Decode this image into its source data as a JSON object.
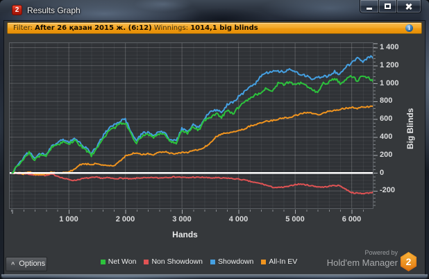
{
  "window": {
    "title": "Results Graph",
    "icon_text": "2"
  },
  "filter": {
    "label": "Filter:",
    "value": "After 26 қазан 2015 ж. (6:12)",
    "winnings_label": "Winnings:",
    "winnings_value": "1014,1 big blinds"
  },
  "bottom": {
    "options_label": "Options",
    "powered_by": "Powered by",
    "brand": "Hold'em Manager",
    "logo_text": "2"
  },
  "chart_data": {
    "type": "line",
    "x_label": "Hands",
    "y_label": "Big Blinds",
    "x_start": 0,
    "x_step": 100,
    "xlim": [
      -43,
      6374
    ],
    "ylim": [
      -395,
      1450
    ],
    "x_ticks": [
      1000,
      2000,
      3000,
      4000,
      5000,
      6000
    ],
    "y_ticks": [
      -200,
      0,
      200,
      400,
      600,
      800,
      1000,
      1200,
      1400
    ],
    "zero_line_color": "#ffffff",
    "series": [
      {
        "name": "Non Showdown",
        "color": "#e05354",
        "noise": 6,
        "z": 1,
        "values": [
          0,
          -10,
          -5,
          -15,
          -25,
          -20,
          -30,
          -15,
          -35,
          -60,
          -75,
          -85,
          -70,
          -60,
          -55,
          -50,
          -60,
          -55,
          -65,
          -60,
          -62,
          -70,
          -60,
          -55,
          -58,
          -52,
          -58,
          -50,
          -48,
          -45,
          -50,
          -55,
          -48,
          -52,
          -50,
          -58,
          -55,
          -60,
          -58,
          -65,
          -70,
          -80,
          -95,
          -110,
          -120,
          -140,
          -160,
          -165,
          -160,
          -150,
          -130,
          -125,
          -135,
          -145,
          -155,
          -160,
          -150,
          -140,
          -145,
          -185,
          -220,
          -228,
          -230,
          -225,
          -212
        ]
      },
      {
        "name": "All-In EV",
        "color": "#f0941f",
        "noise": 8,
        "z": 1,
        "values": [
          0,
          5,
          -10,
          10,
          -15,
          -20,
          -10,
          5,
          -5,
          0,
          10,
          40,
          90,
          100,
          95,
          105,
          90,
          75,
          80,
          130,
          185,
          210,
          225,
          205,
          215,
          205,
          230,
          240,
          215,
          215,
          225,
          230,
          250,
          255,
          290,
          330,
          400,
          430,
          450,
          455,
          470,
          490,
          520,
          535,
          560,
          575,
          585,
          600,
          615,
          620,
          640,
          660,
          675,
          665,
          650,
          665,
          690,
          700,
          710,
          720,
          730,
          720,
          740,
          735,
          750
        ]
      },
      {
        "name": "Showdown",
        "color": "#45a0e2",
        "noise": 15,
        "z": 2,
        "values": [
          0,
          90,
          165,
          240,
          165,
          220,
          200,
          310,
          330,
          370,
          340,
          390,
          330,
          280,
          215,
          295,
          405,
          490,
          530,
          580,
          600,
          460,
          360,
          445,
          455,
          420,
          455,
          450,
          365,
          355,
          490,
          465,
          540,
          505,
          610,
          680,
          700,
          680,
          760,
          790,
          850,
          900,
          950,
          1000,
          1080,
          1120,
          1130,
          1140,
          1120,
          1150,
          1120,
          1100,
          1080,
          1050,
          1060,
          1070,
          1090,
          1130,
          1100,
          1180,
          1230,
          1280,
          1240,
          1300,
          1285
        ]
      },
      {
        "name": "Net Won",
        "color": "#2cc23c",
        "noise": 15,
        "z": 2,
        "values": [
          0,
          80,
          150,
          225,
          140,
          200,
          185,
          290,
          310,
          345,
          320,
          360,
          310,
          255,
          195,
          270,
          380,
          460,
          500,
          545,
          560,
          430,
          335,
          420,
          430,
          400,
          430,
          430,
          345,
          335,
          470,
          440,
          515,
          480,
          590,
          620,
          665,
          620,
          700,
          660,
          730,
          780,
          830,
          870,
          900,
          950,
          920,
          1000,
          990,
          1010,
          985,
          1000,
          980,
          930,
          905,
          1000,
          1010,
          1060,
          1000,
          1040,
          1080,
          1030,
          1090,
          1060,
          1020
        ]
      }
    ],
    "legend": [
      {
        "label": "Net Won",
        "color": "#2cc23c"
      },
      {
        "label": "Non Showdown",
        "color": "#e05354"
      },
      {
        "label": "Showdown",
        "color": "#45a0e2"
      },
      {
        "label": "All-In EV",
        "color": "#f0941f"
      }
    ]
  }
}
